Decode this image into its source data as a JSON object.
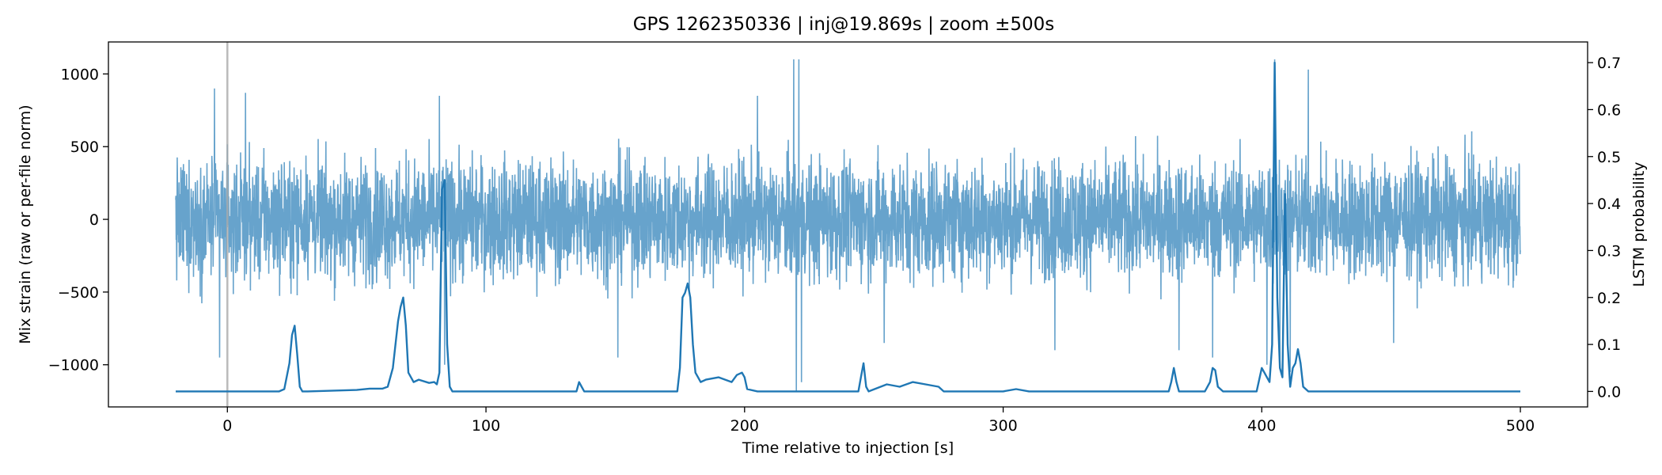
{
  "chart_data": {
    "type": "line",
    "title": "GPS 1262350336 | inj@19.869s | zoom ±500s",
    "xlabel": "Time relative to injection [s]",
    "ylabel_left": "Mix strain (raw or per-file norm)",
    "ylabel_right": "LSTM probability",
    "xlim": [
      -46,
      526
    ],
    "ylim_left": [
      -1290,
      1220
    ],
    "ylim_right": [
      -0.033,
      0.744
    ],
    "x_ticks": [
      0,
      100,
      200,
      300,
      400,
      500
    ],
    "y_ticks_left": [
      -1000,
      -500,
      0,
      500,
      1000
    ],
    "y_ticks_right": [
      0.0,
      0.1,
      0.2,
      0.3,
      0.4,
      0.5,
      0.6,
      0.7
    ],
    "y_tick_labels_left": [
      "−1000",
      "−500",
      "0",
      "500",
      "1000"
    ],
    "y_tick_labels_right": [
      "0.0",
      "0.1",
      "0.2",
      "0.3",
      "0.4",
      "0.5",
      "0.6",
      "0.7"
    ],
    "x_tick_labels": [
      "0",
      "100",
      "200",
      "300",
      "400",
      "500"
    ],
    "grid": false,
    "vline": {
      "x": 0,
      "color": "#aaaaaa"
    },
    "series": [
      {
        "axis": "left",
        "color": "#5f9ec9",
        "x_range": [
          -20,
          500
        ],
        "typical_amplitude": 450,
        "spikes": [
          {
            "x": -5,
            "y": 900
          },
          {
            "x": -3,
            "y": -950
          },
          {
            "x": 7,
            "y": 870
          },
          {
            "x": 82,
            "y": 850
          },
          {
            "x": 84,
            "y": -1000
          },
          {
            "x": 151,
            "y": -950
          },
          {
            "x": 205,
            "y": 850
          },
          {
            "x": 219,
            "y": 1100
          },
          {
            "x": 220,
            "y": -1180
          },
          {
            "x": 221,
            "y": 1100
          },
          {
            "x": 222,
            "y": -1120
          },
          {
            "x": 254,
            "y": -850
          },
          {
            "x": 320,
            "y": -900
          },
          {
            "x": 368,
            "y": -900
          },
          {
            "x": 381,
            "y": -950
          },
          {
            "x": 402,
            "y": -1000
          },
          {
            "x": 405,
            "y": 1100
          },
          {
            "x": 407,
            "y": -1020
          },
          {
            "x": 411,
            "y": -1050
          },
          {
            "x": 418,
            "y": 1030
          },
          {
            "x": 451,
            "y": -850
          }
        ]
      },
      {
        "axis": "right",
        "color": "#1f77b4",
        "x": [
          -20,
          20,
          22,
          24,
          25,
          26,
          27,
          28,
          29,
          31,
          50,
          55,
          60,
          62,
          64,
          66,
          67,
          68,
          69,
          70,
          72,
          74,
          78,
          80,
          81,
          82,
          83,
          84,
          85,
          86,
          87,
          135,
          136,
          137,
          138,
          174,
          175,
          176,
          177,
          178,
          179,
          180,
          181,
          182,
          183,
          185,
          190,
          195,
          197,
          199,
          200,
          201,
          205,
          244,
          245,
          246,
          247,
          248,
          255,
          260,
          265,
          270,
          275,
          277,
          300,
          305,
          310,
          364,
          365,
          366,
          367,
          368,
          370,
          378,
          380,
          381,
          382,
          383,
          385,
          398,
          400,
          401,
          402,
          403,
          404,
          405,
          406,
          407,
          408,
          409,
          410,
          411,
          412,
          413,
          414,
          415,
          416,
          418,
          420,
          500
        ],
        "y": [
          0.0,
          0.0,
          0.005,
          0.06,
          0.12,
          0.14,
          0.08,
          0.01,
          0.0,
          0.0,
          0.003,
          0.006,
          0.006,
          0.01,
          0.05,
          0.15,
          0.18,
          0.2,
          0.14,
          0.04,
          0.02,
          0.025,
          0.018,
          0.02,
          0.015,
          0.04,
          0.43,
          0.45,
          0.1,
          0.01,
          0.0,
          0.0,
          0.02,
          0.01,
          0.0,
          0.0,
          0.05,
          0.2,
          0.21,
          0.23,
          0.2,
          0.1,
          0.04,
          0.03,
          0.02,
          0.025,
          0.03,
          0.02,
          0.035,
          0.04,
          0.03,
          0.005,
          0.0,
          0.0,
          0.03,
          0.06,
          0.01,
          0.0,
          0.015,
          0.01,
          0.02,
          0.015,
          0.01,
          0.0,
          0.0,
          0.005,
          0.0,
          0.0,
          0.02,
          0.05,
          0.02,
          0.0,
          0.0,
          0.0,
          0.02,
          0.05,
          0.045,
          0.01,
          0.0,
          0.0,
          0.05,
          0.04,
          0.03,
          0.02,
          0.1,
          0.7,
          0.2,
          0.05,
          0.03,
          0.42,
          0.1,
          0.01,
          0.05,
          0.06,
          0.09,
          0.06,
          0.01,
          0.0,
          0.0,
          0.0
        ]
      }
    ]
  }
}
